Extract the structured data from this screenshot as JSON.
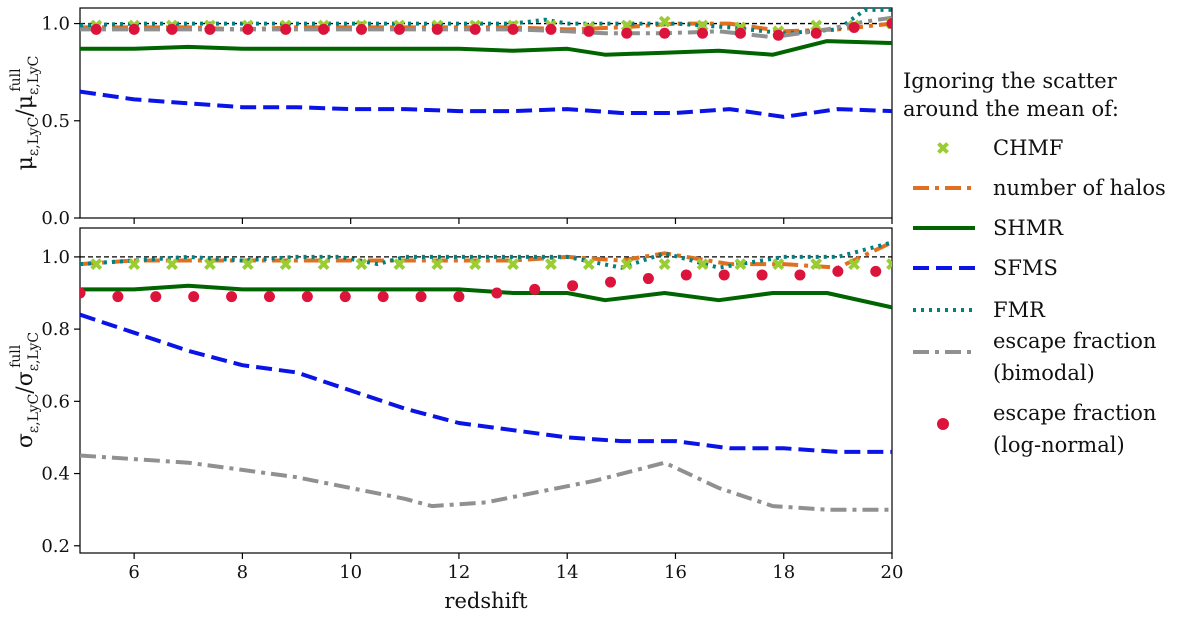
{
  "chart_data": [
    {
      "panel": "top",
      "type": "line",
      "ylabel": "μ_ε,LyC / μ_ε,LyC^full",
      "ylabel_main": "μ",
      "ylabel_sub": "ε,LyC",
      "ylabel_den_sup": "full",
      "xlim": [
        5,
        20
      ],
      "ylim": [
        0,
        1.08
      ],
      "yticks": [
        0.0,
        0.5,
        1.0
      ],
      "ytick_labels": [
        "0.0",
        "0.5",
        "1.0"
      ],
      "reference_line": 1.0,
      "series": [
        {
          "name": "CHMF",
          "style": "markers-x",
          "color": "#9acd32",
          "x": [
            5.3,
            6.0,
            6.7,
            7.4,
            8.1,
            8.8,
            9.5,
            10.2,
            10.9,
            11.6,
            12.3,
            13.0,
            13.7,
            14.4,
            15.1,
            15.8,
            16.5,
            17.2,
            17.9,
            18.6,
            19.3,
            20.0
          ],
          "y": [
            0.99,
            0.99,
            0.99,
            0.99,
            0.99,
            0.99,
            0.99,
            0.99,
            0.99,
            0.99,
            0.99,
            0.99,
            0.99,
            0.98,
            0.99,
            1.01,
            0.99,
            0.98,
            0.96,
            0.99,
            0.99,
            1.0
          ]
        },
        {
          "name": "number of halos",
          "style": "dashdot",
          "color": "#e07020",
          "x": [
            5,
            6,
            7,
            8,
            9,
            10,
            11,
            12,
            13,
            14,
            15,
            16,
            17,
            18,
            19,
            20
          ],
          "y": [
            0.98,
            0.98,
            0.98,
            0.97,
            0.98,
            0.98,
            0.98,
            0.98,
            0.98,
            0.97,
            0.98,
            1.0,
            1.0,
            0.96,
            0.97,
            1.0
          ]
        },
        {
          "name": "SHMR",
          "style": "solid",
          "color": "#006400",
          "x": [
            5,
            6,
            7,
            8,
            9,
            10,
            11,
            12,
            13,
            14,
            14.7,
            15.8,
            16.8,
            17.8,
            18.8,
            20
          ],
          "y": [
            0.87,
            0.87,
            0.88,
            0.87,
            0.87,
            0.87,
            0.87,
            0.87,
            0.86,
            0.87,
            0.84,
            0.85,
            0.86,
            0.84,
            0.91,
            0.9
          ]
        },
        {
          "name": "SFMS",
          "style": "dashed",
          "color": "#0a14e6",
          "x": [
            5,
            6,
            7,
            8,
            9,
            10,
            11,
            12,
            13,
            14,
            15,
            16,
            17,
            18,
            19,
            20
          ],
          "y": [
            0.65,
            0.61,
            0.59,
            0.57,
            0.57,
            0.56,
            0.56,
            0.55,
            0.55,
            0.56,
            0.54,
            0.54,
            0.56,
            0.52,
            0.56,
            0.55
          ]
        },
        {
          "name": "FMR",
          "style": "dotted",
          "color": "#008080",
          "x": [
            5,
            6,
            7,
            8,
            9,
            10,
            11,
            12,
            13,
            13.6,
            14,
            15,
            16,
            17,
            18,
            19,
            19.5,
            20
          ],
          "y": [
            0.99,
            1.0,
            1.0,
            1.0,
            1.0,
            1.0,
            1.0,
            1.0,
            1.0,
            1.02,
            1.0,
            1.0,
            1.0,
            0.98,
            0.95,
            0.97,
            1.07,
            1.07
          ]
        },
        {
          "name": "escape fraction (bimodal)",
          "style": "dashdot",
          "color": "#909090",
          "x": [
            5,
            6,
            7,
            8,
            9,
            10,
            11,
            12,
            13,
            14,
            14.7,
            15.8,
            16.8,
            17.8,
            18.8,
            19.5,
            20
          ],
          "y": [
            0.97,
            0.97,
            0.97,
            0.97,
            0.97,
            0.97,
            0.97,
            0.97,
            0.97,
            0.96,
            0.95,
            0.95,
            0.96,
            0.93,
            0.97,
            1.01,
            1.03
          ]
        },
        {
          "name": "escape fraction (log-normal)",
          "style": "markers-circle",
          "color": "#dc143c",
          "x": [
            5.3,
            6.0,
            6.7,
            7.4,
            8.1,
            8.8,
            9.5,
            10.2,
            10.9,
            11.6,
            12.3,
            13.0,
            13.7,
            14.4,
            15.1,
            15.8,
            16.5,
            17.2,
            17.9,
            18.6,
            19.3,
            20.0
          ],
          "y": [
            0.97,
            0.97,
            0.97,
            0.97,
            0.97,
            0.97,
            0.97,
            0.97,
            0.97,
            0.97,
            0.97,
            0.97,
            0.97,
            0.96,
            0.95,
            0.95,
            0.95,
            0.95,
            0.94,
            0.95,
            0.98,
            1.0
          ]
        }
      ]
    },
    {
      "panel": "bottom",
      "type": "line",
      "xlabel": "redshift",
      "ylabel": "σ_ε,LyC / σ_ε,LyC^full",
      "ylabel_main": "σ",
      "ylabel_sub": "ε,LyC",
      "ylabel_den_sup": "full",
      "xlim": [
        5,
        20
      ],
      "ylim": [
        0.18,
        1.08
      ],
      "xticks": [
        6,
        8,
        10,
        12,
        14,
        16,
        18,
        20
      ],
      "xtick_labels": [
        "6",
        "8",
        "10",
        "12",
        "14",
        "16",
        "18",
        "20"
      ],
      "yticks": [
        0.2,
        0.4,
        0.6,
        0.8,
        1.0
      ],
      "ytick_labels": [
        "0.2",
        "0.4",
        "0.6",
        "0.8",
        "1.0"
      ],
      "reference_line": 1.0,
      "series": [
        {
          "name": "CHMF",
          "style": "markers-x",
          "color": "#9acd32",
          "x": [
            5.3,
            6.0,
            6.7,
            7.4,
            8.1,
            8.8,
            9.5,
            10.2,
            10.9,
            11.6,
            12.3,
            13.0,
            13.7,
            14.4,
            15.1,
            15.8,
            16.5,
            17.2,
            17.9,
            18.6,
            19.3,
            20.0
          ],
          "y": [
            0.98,
            0.98,
            0.98,
            0.98,
            0.98,
            0.98,
            0.98,
            0.98,
            0.98,
            0.98,
            0.98,
            0.98,
            0.98,
            0.98,
            0.98,
            0.98,
            0.98,
            0.98,
            0.98,
            0.98,
            0.98,
            0.98
          ]
        },
        {
          "name": "number of halos",
          "style": "dashdot",
          "color": "#e07020",
          "x": [
            5,
            6,
            7,
            8,
            9,
            10,
            11,
            12,
            13,
            14,
            15,
            15.8,
            17,
            18,
            19,
            20
          ],
          "y": [
            0.98,
            0.99,
            0.99,
            0.99,
            0.99,
            0.99,
            0.99,
            0.99,
            0.99,
            1.0,
            0.99,
            1.01,
            0.98,
            0.98,
            0.97,
            1.04
          ]
        },
        {
          "name": "SHMR",
          "style": "solid",
          "color": "#006400",
          "x": [
            5,
            6,
            7,
            8,
            9,
            10,
            11,
            12,
            13,
            14,
            14.7,
            15.8,
            16.8,
            17.8,
            18.8,
            20
          ],
          "y": [
            0.91,
            0.91,
            0.92,
            0.91,
            0.91,
            0.91,
            0.91,
            0.91,
            0.9,
            0.9,
            0.88,
            0.9,
            0.88,
            0.9,
            0.9,
            0.86
          ]
        },
        {
          "name": "SFMS",
          "style": "dashed",
          "color": "#0a14e6",
          "x": [
            5,
            6,
            7,
            8,
            9,
            10,
            11,
            12,
            13,
            14,
            15,
            16,
            17,
            18,
            19,
            20
          ],
          "y": [
            0.84,
            0.79,
            0.74,
            0.7,
            0.68,
            0.63,
            0.58,
            0.54,
            0.52,
            0.5,
            0.49,
            0.49,
            0.47,
            0.47,
            0.46,
            0.46
          ]
        },
        {
          "name": "FMR",
          "style": "dotted",
          "color": "#008080",
          "x": [
            5,
            6,
            7,
            8,
            9,
            9.8,
            10.5,
            11,
            12,
            13,
            14,
            15,
            15.8,
            16.8,
            18,
            19,
            20
          ],
          "y": [
            0.98,
            0.99,
            1.0,
            0.99,
            1.0,
            1.0,
            0.98,
            1.0,
            1.0,
            1.0,
            1.0,
            0.97,
            1.01,
            0.97,
            1.0,
            1.0,
            1.04
          ]
        },
        {
          "name": "escape fraction (bimodal)",
          "style": "dashdot",
          "color": "#909090",
          "x": [
            5,
            6,
            7,
            8,
            9,
            10,
            11,
            11.5,
            12.5,
            13.5,
            14.5,
            15.8,
            16.8,
            17.8,
            18.8,
            20
          ],
          "y": [
            0.45,
            0.44,
            0.43,
            0.41,
            0.39,
            0.36,
            0.33,
            0.31,
            0.32,
            0.35,
            0.38,
            0.43,
            0.36,
            0.31,
            0.3,
            0.3
          ]
        },
        {
          "name": "escape fraction (log-normal)",
          "style": "markers-circle",
          "color": "#dc143c",
          "x": [
            5.0,
            5.7,
            6.4,
            7.1,
            7.8,
            8.5,
            9.2,
            9.9,
            10.6,
            11.3,
            12.0,
            12.7,
            13.4,
            14.1,
            14.8,
            15.5,
            16.2,
            16.9,
            17.6,
            18.3,
            19.0,
            19.7
          ],
          "y": [
            0.9,
            0.89,
            0.89,
            0.89,
            0.89,
            0.89,
            0.89,
            0.89,
            0.89,
            0.89,
            0.89,
            0.9,
            0.91,
            0.92,
            0.93,
            0.94,
            0.95,
            0.95,
            0.95,
            0.95,
            0.96,
            0.96
          ]
        }
      ]
    }
  ],
  "legend": {
    "placement": "right",
    "title_line1": "Ignoring the scatter",
    "title_line2": "around the mean of:",
    "entries": [
      {
        "label_line1": "CHMF",
        "label_line2": "",
        "series": "CHMF"
      },
      {
        "label_line1": "number of halos",
        "label_line2": "",
        "series": "number of halos"
      },
      {
        "label_line1": "SHMR",
        "label_line2": "",
        "series": "SHMR"
      },
      {
        "label_line1": "SFMS",
        "label_line2": "",
        "series": "SFMS"
      },
      {
        "label_line1": "FMR",
        "label_line2": "",
        "series": "FMR"
      },
      {
        "label_line1": "escape fraction",
        "label_line2": "(bimodal)",
        "series": "escape fraction (bimodal)"
      },
      {
        "label_line1": "escape fraction",
        "label_line2": "(log-normal)",
        "series": "escape fraction (log-normal)"
      }
    ]
  }
}
